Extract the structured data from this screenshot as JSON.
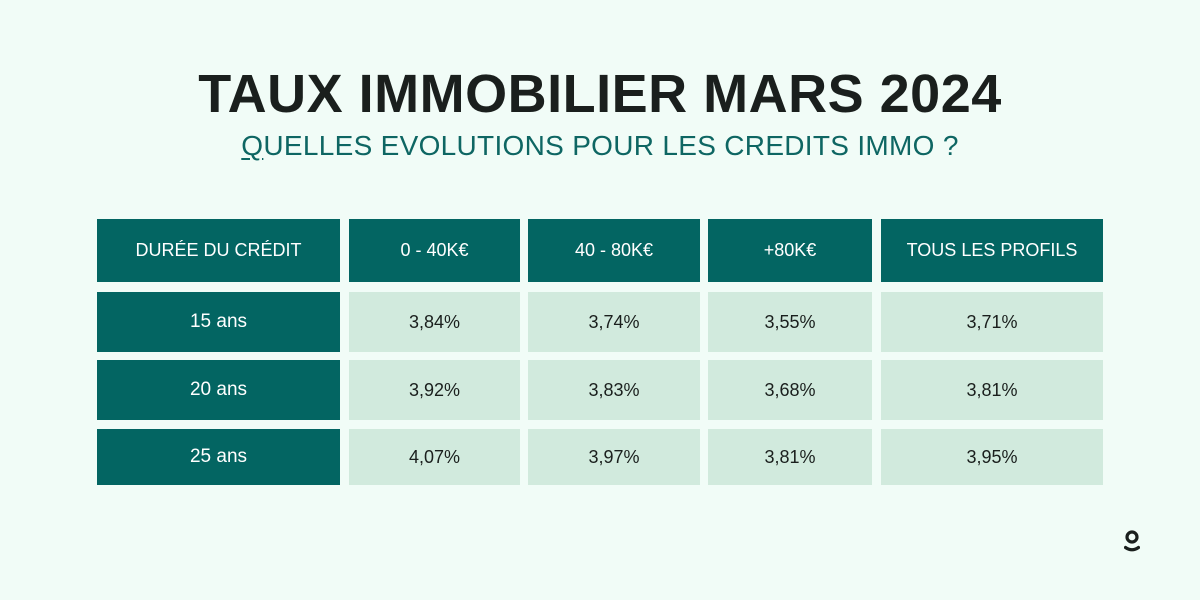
{
  "title": "TAUX IMMOBILIER MARS 2024",
  "subtitle": "QUELLES EVOLUTIONS POUR LES CREDITS IMMO ?",
  "table": {
    "headers": [
      "DURÉE DU CRÉDIT",
      "0 - 40K€",
      "40 - 80K€",
      "+80K€",
      "TOUS LES PROFILS"
    ],
    "rows": [
      {
        "label": "15 ans",
        "values": [
          "3,84%",
          "3,74%",
          "3,55%",
          "3,71%"
        ]
      },
      {
        "label": "20 ans",
        "values": [
          "3,92%",
          "3,83%",
          "3,68%",
          "3,81%"
        ]
      },
      {
        "label": "25 ans",
        "values": [
          "4,07%",
          "3,97%",
          "3,81%",
          "3,95%"
        ]
      }
    ]
  },
  "colors": {
    "background": "#f1fcf7",
    "accent": "#036562",
    "cell": "#d1eadd",
    "text": "#1a1f1d",
    "subtitle": "#0e6663"
  },
  "logo": {
    "icon": "brand-logo-icon"
  }
}
